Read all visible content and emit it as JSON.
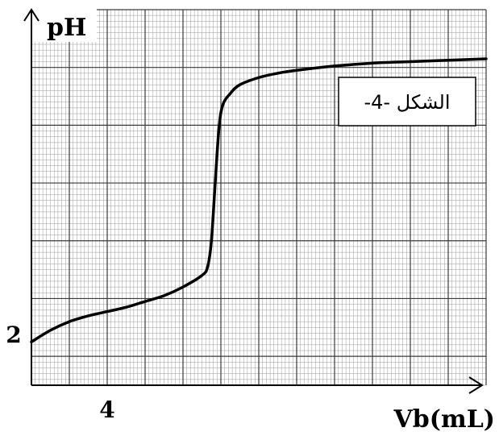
{
  "chart_data": {
    "type": "line",
    "xlabel": "Vb(mL)",
    "ylabel": "pH",
    "annotation": "الشكل -4-",
    "x_tick_labels": [
      {
        "value": 4,
        "label": "4"
      }
    ],
    "y_tick_labels": [
      {
        "value": 2,
        "label": "2"
      }
    ],
    "xlim": [
      0,
      24
    ],
    "ylim": [
      1,
      14
    ],
    "grid": true,
    "series": [
      {
        "points": [
          [
            0,
            2.5
          ],
          [
            1,
            2.9
          ],
          [
            2,
            3.2
          ],
          [
            3,
            3.4
          ],
          [
            4,
            3.55
          ],
          [
            5,
            3.7
          ],
          [
            6,
            3.9
          ],
          [
            7,
            4.1
          ],
          [
            8,
            4.4
          ],
          [
            9,
            4.8
          ],
          [
            9.3,
            5.1
          ],
          [
            9.5,
            6.0
          ],
          [
            9.7,
            8.0
          ],
          [
            9.9,
            9.9
          ],
          [
            10.1,
            10.7
          ],
          [
            10.5,
            11.1
          ],
          [
            11,
            11.4
          ],
          [
            12,
            11.65
          ],
          [
            13,
            11.8
          ],
          [
            14,
            11.9
          ],
          [
            16,
            12.05
          ],
          [
            18,
            12.15
          ],
          [
            20,
            12.2
          ],
          [
            22,
            12.25
          ],
          [
            24,
            12.3
          ]
        ]
      }
    ]
  }
}
